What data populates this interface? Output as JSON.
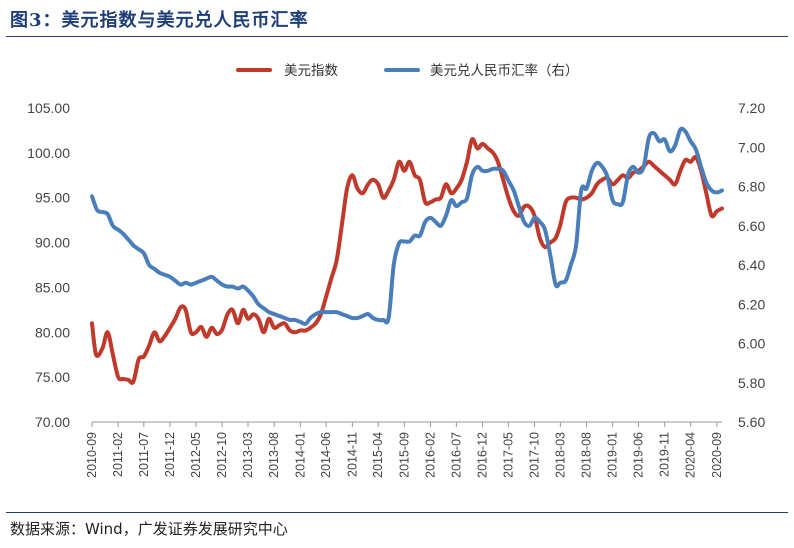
{
  "figure": {
    "title": "图3：美元指数与美元兑人民币汇率",
    "source": "数据来源：Wind，广发证券发展研究中心"
  },
  "colors": {
    "usd_index": "#c0392b",
    "usdcny": "#4a7ebb",
    "accent": "#1f3e78"
  },
  "chart_data": {
    "type": "line",
    "legend": {
      "placement": "top-right"
    },
    "grid": false,
    "x_ticks": [
      "2010-09",
      "2011-02",
      "2011-07",
      "2011-12",
      "2012-05",
      "2012-10",
      "2013-03",
      "2013-08",
      "2014-01",
      "2014-06",
      "2014-11",
      "2015-04",
      "2015-09",
      "2016-02",
      "2016-07",
      "2016-12",
      "2017-05",
      "2017-10",
      "2018-03",
      "2018-08",
      "2019-01",
      "2019-06",
      "2019-11",
      "2020-04",
      "2020-09"
    ],
    "x_range": [
      "2010-09",
      "2020-10"
    ],
    "y_left": {
      "ylim": [
        70,
        105
      ],
      "ticks": [
        "70.00",
        "75.00",
        "80.00",
        "85.00",
        "90.00",
        "95.00",
        "100.00",
        "105.00"
      ]
    },
    "y_right": {
      "ylim": [
        5.6,
        7.2
      ],
      "ticks": [
        "5.60",
        "5.80",
        "6.00",
        "6.20",
        "6.40",
        "6.60",
        "6.80",
        "7.00",
        "7.20"
      ]
    },
    "series": [
      {
        "name": "美元指数",
        "axis": "left",
        "x": [
          "2010-09-01",
          "2010-09-25",
          "2010-11-01",
          "2010-12-01",
          "2011-01-01",
          "2011-02-01",
          "2011-03-01",
          "2011-04-01",
          "2011-05-01",
          "2011-06-01",
          "2011-07-01",
          "2011-08-01",
          "2011-09-01",
          "2011-10-01",
          "2011-11-01",
          "2011-12-01",
          "2012-01-01",
          "2012-02-01",
          "2012-03-01",
          "2012-04-01",
          "2012-05-01",
          "2012-06-01",
          "2012-07-01",
          "2012-08-01",
          "2012-09-01",
          "2012-10-01",
          "2012-11-01",
          "2012-12-01",
          "2013-01-01",
          "2013-02-01",
          "2013-03-01",
          "2013-04-01",
          "2013-05-01",
          "2013-06-01",
          "2013-07-01",
          "2013-08-01",
          "2013-09-01",
          "2013-10-01",
          "2013-11-01",
          "2013-12-01",
          "2014-01-01",
          "2014-02-01",
          "2014-03-01",
          "2014-04-01",
          "2014-05-01",
          "2014-06-01",
          "2014-07-01",
          "2014-08-01",
          "2014-09-01",
          "2014-10-01",
          "2014-11-01",
          "2014-12-01",
          "2015-01-01",
          "2015-02-01",
          "2015-03-01",
          "2015-04-01",
          "2015-05-01",
          "2015-06-01",
          "2015-07-01",
          "2015-08-01",
          "2015-09-01",
          "2015-10-01",
          "2015-11-01",
          "2015-12-01",
          "2016-01-01",
          "2016-02-01",
          "2016-03-01",
          "2016-04-01",
          "2016-05-01",
          "2016-06-01",
          "2016-07-01",
          "2016-08-01",
          "2016-09-01",
          "2016-10-01",
          "2016-11-01",
          "2016-12-01",
          "2017-01-01",
          "2017-02-01",
          "2017-03-01",
          "2017-04-01",
          "2017-05-01",
          "2017-06-01",
          "2017-07-01",
          "2017-08-01",
          "2017-09-01",
          "2017-10-01",
          "2017-11-01",
          "2017-12-01",
          "2018-01-01",
          "2018-02-01",
          "2018-03-01",
          "2018-04-01",
          "2018-05-01",
          "2018-06-01",
          "2018-07-01",
          "2018-08-01",
          "2018-09-01",
          "2018-10-01",
          "2018-11-01",
          "2018-12-01",
          "2019-01-01",
          "2019-02-01",
          "2019-03-01",
          "2019-04-01",
          "2019-05-01",
          "2019-06-01",
          "2019-07-01",
          "2019-08-01",
          "2019-09-01",
          "2019-10-01",
          "2019-11-01",
          "2019-12-01",
          "2020-01-01",
          "2020-02-01",
          "2020-03-01",
          "2020-04-01",
          "2020-05-01",
          "2020-06-01",
          "2020-07-01",
          "2020-08-01",
          "2020-09-01",
          "2020-10-01"
        ],
        "values": [
          81.0,
          77.5,
          78.2,
          80.0,
          77.5,
          75.0,
          74.8,
          74.7,
          74.5,
          77.0,
          77.3,
          78.5,
          80.0,
          79.0,
          79.6,
          80.5,
          81.5,
          82.8,
          82.5,
          80.0,
          80.0,
          80.6,
          79.5,
          80.5,
          79.8,
          80.3,
          82.0,
          82.5,
          81.0,
          82.5,
          81.5,
          82.0,
          81.5,
          80.0,
          81.5,
          80.5,
          80.8,
          81.0,
          80.2,
          80.0,
          80.2,
          80.2,
          80.5,
          81.0,
          82.0,
          84.0,
          86.0,
          88.0,
          92.0,
          96.0,
          97.5,
          96.0,
          95.5,
          96.5,
          97.0,
          96.5,
          95.0,
          95.8,
          97.0,
          99.0,
          98.0,
          99.0,
          97.5,
          97.0,
          94.5,
          94.5,
          94.8,
          95.0,
          96.5,
          95.5,
          96.0,
          97.0,
          99.0,
          101.5,
          100.5,
          101.0,
          100.5,
          100.0,
          99.0,
          97.0,
          95.0,
          93.5,
          93.0,
          94.0,
          94.0,
          93.0,
          90.5,
          89.5,
          90.0,
          90.5,
          92.0,
          94.5,
          95.0,
          95.0,
          94.8,
          95.0,
          95.5,
          96.5,
          97.0,
          97.2,
          96.5,
          97.0,
          97.5,
          97.2,
          97.8,
          98.0,
          98.5,
          99.0,
          98.5,
          98.0,
          97.5,
          97.0,
          96.5,
          98.0,
          99.2,
          99.0,
          99.5,
          98.0,
          95.5,
          93.0,
          93.5,
          93.8
        ]
      },
      {
        "name": "美元兑人民币汇率（右）",
        "axis": "right",
        "x": [
          "2010-09-01",
          "2010-10-01",
          "2010-11-01",
          "2010-12-01",
          "2011-01-01",
          "2011-02-01",
          "2011-03-01",
          "2011-04-01",
          "2011-05-01",
          "2011-06-01",
          "2011-07-01",
          "2011-08-01",
          "2011-09-01",
          "2011-10-01",
          "2011-11-01",
          "2011-12-01",
          "2012-01-01",
          "2012-02-01",
          "2012-03-01",
          "2012-04-01",
          "2012-05-01",
          "2012-06-01",
          "2012-07-01",
          "2012-08-01",
          "2012-09-01",
          "2012-10-01",
          "2012-11-01",
          "2012-12-01",
          "2013-01-01",
          "2013-02-01",
          "2013-03-01",
          "2013-04-01",
          "2013-05-01",
          "2013-06-01",
          "2013-07-01",
          "2013-08-01",
          "2013-09-01",
          "2013-10-01",
          "2013-11-01",
          "2013-12-01",
          "2014-01-01",
          "2014-02-01",
          "2014-03-01",
          "2014-04-01",
          "2014-05-01",
          "2014-06-01",
          "2014-07-01",
          "2014-08-01",
          "2014-09-01",
          "2014-10-01",
          "2014-11-01",
          "2014-12-01",
          "2015-01-01",
          "2015-02-01",
          "2015-03-01",
          "2015-04-01",
          "2015-05-01",
          "2015-06-01",
          "2015-07-01",
          "2015-08-01",
          "2015-09-01",
          "2015-10-01",
          "2015-11-01",
          "2015-12-01",
          "2016-01-01",
          "2016-02-01",
          "2016-03-01",
          "2016-04-01",
          "2016-05-01",
          "2016-06-01",
          "2016-07-01",
          "2016-08-01",
          "2016-09-01",
          "2016-10-01",
          "2016-11-01",
          "2016-12-01",
          "2017-01-01",
          "2017-02-01",
          "2017-03-01",
          "2017-04-01",
          "2017-05-01",
          "2017-06-01",
          "2017-07-01",
          "2017-08-01",
          "2017-09-01",
          "2017-10-01",
          "2017-11-01",
          "2017-12-01",
          "2018-01-01",
          "2018-02-01",
          "2018-03-01",
          "2018-04-01",
          "2018-05-01",
          "2018-06-01",
          "2018-07-01",
          "2018-08-01",
          "2018-09-01",
          "2018-10-01",
          "2018-11-01",
          "2018-12-01",
          "2019-01-01",
          "2019-02-01",
          "2019-03-01",
          "2019-04-01",
          "2019-05-01",
          "2019-06-01",
          "2019-07-01",
          "2019-08-01",
          "2019-09-01",
          "2019-10-01",
          "2019-11-01",
          "2019-12-01",
          "2020-01-01",
          "2020-02-01",
          "2020-03-01",
          "2020-04-01",
          "2020-05-01",
          "2020-06-01",
          "2020-07-01",
          "2020-08-01",
          "2020-09-01",
          "2020-10-01"
        ],
        "values": [
          6.75,
          6.68,
          6.67,
          6.66,
          6.6,
          6.58,
          6.56,
          6.53,
          6.5,
          6.48,
          6.46,
          6.4,
          6.38,
          6.36,
          6.35,
          6.34,
          6.32,
          6.3,
          6.31,
          6.3,
          6.31,
          6.32,
          6.33,
          6.34,
          6.32,
          6.3,
          6.29,
          6.29,
          6.28,
          6.29,
          6.27,
          6.24,
          6.2,
          6.18,
          6.16,
          6.15,
          6.14,
          6.13,
          6.12,
          6.12,
          6.11,
          6.1,
          6.13,
          6.15,
          6.16,
          6.16,
          6.16,
          6.16,
          6.15,
          6.14,
          6.13,
          6.13,
          6.14,
          6.15,
          6.13,
          6.12,
          6.12,
          6.13,
          6.4,
          6.51,
          6.52,
          6.52,
          6.55,
          6.55,
          6.62,
          6.64,
          6.62,
          6.6,
          6.65,
          6.73,
          6.7,
          6.72,
          6.74,
          6.86,
          6.9,
          6.88,
          6.88,
          6.89,
          6.89,
          6.88,
          6.83,
          6.78,
          6.7,
          6.62,
          6.6,
          6.64,
          6.62,
          6.58,
          6.45,
          6.3,
          6.31,
          6.32,
          6.4,
          6.5,
          6.78,
          6.79,
          6.88,
          6.92,
          6.9,
          6.85,
          6.73,
          6.71,
          6.72,
          6.86,
          6.9,
          6.87,
          6.9,
          7.05,
          7.07,
          7.03,
          7.04,
          6.98,
          7.01,
          7.09,
          7.08,
          7.03,
          6.99,
          6.9,
          6.82,
          6.78,
          6.77,
          6.78
        ]
      }
    ]
  }
}
